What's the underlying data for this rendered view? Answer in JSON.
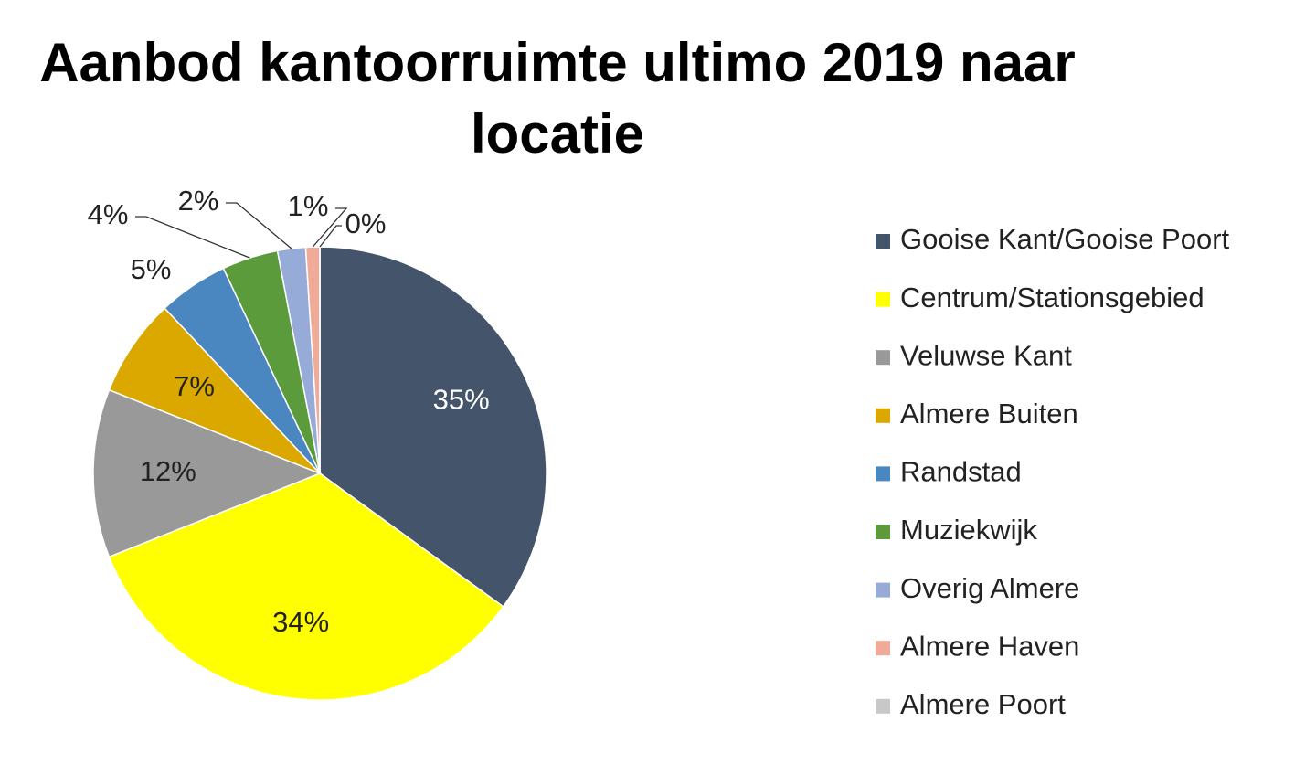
{
  "chart_data": {
    "type": "pie",
    "title": "Aanbod kantoorruimte ultimo 2019 naar locatie",
    "categories": [
      "Gooise Kant/Gooise Poort",
      "Centrum/Stationsgebied",
      "Veluwse Kant",
      "Almere Buiten",
      "Randstad",
      "Muziekwijk",
      "Overig Almere",
      "Almere Haven",
      "Almere Poort"
    ],
    "values": [
      35,
      34,
      12,
      7,
      5,
      4,
      2,
      1,
      0
    ],
    "value_labels": [
      "35%",
      "34%",
      "12%",
      "7%",
      "5%",
      "4%",
      "2%",
      "1%",
      "0%"
    ],
    "colors": [
      "#44546a",
      "#ffff00",
      "#999999",
      "#dba800",
      "#4a86c0",
      "#5b9b3c",
      "#97abd8",
      "#f0ab98",
      "#c8c8c8"
    ],
    "legend": "right"
  }
}
